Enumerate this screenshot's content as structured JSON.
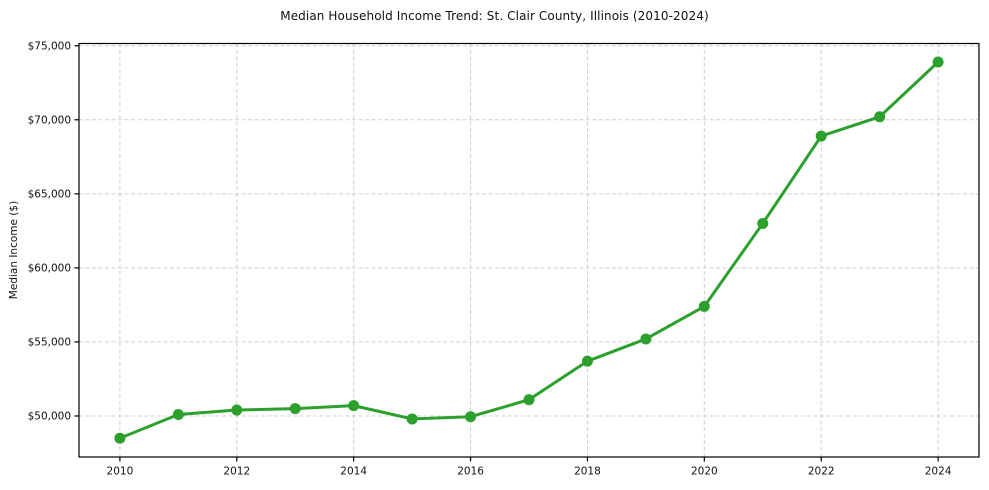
{
  "chart_data": {
    "type": "line",
    "title": "Median Household Income Trend: St. Clair County, Illinois (2010-2024)",
    "xlabel": "",
    "ylabel": "Median Income ($)",
    "x": [
      2010,
      2011,
      2012,
      2013,
      2014,
      2015,
      2016,
      2017,
      2018,
      2019,
      2020,
      2021,
      2022,
      2023,
      2024
    ],
    "values": [
      48500,
      50100,
      50400,
      50500,
      50700,
      49800,
      49950,
      51100,
      53700,
      55200,
      57400,
      63000,
      68900,
      70200,
      73900
    ],
    "x_ticks": {
      "values": [
        2010,
        2012,
        2014,
        2016,
        2018,
        2020,
        2022,
        2024
      ],
      "labels": [
        "2010",
        "2012",
        "2014",
        "2016",
        "2018",
        "2020",
        "2022",
        "2024"
      ]
    },
    "y_ticks": {
      "values": [
        50000,
        55000,
        60000,
        65000,
        70000,
        75000
      ],
      "labels": [
        "$50,000",
        "$55,000",
        "$60,000",
        "$65,000",
        "$70,000",
        "$75,000"
      ]
    },
    "xlim": [
      2009.3,
      2024.7
    ],
    "ylim": [
      47230,
      75150
    ],
    "grid": "dashed",
    "legend_position": "none",
    "line_color": "#2ca02c",
    "marker": "circle",
    "marker_color": "#2ca02c",
    "grid_color": "#cfcfcf",
    "axis_color": "#000000",
    "text_color": "#111111",
    "background_color": "#ffffff"
  }
}
